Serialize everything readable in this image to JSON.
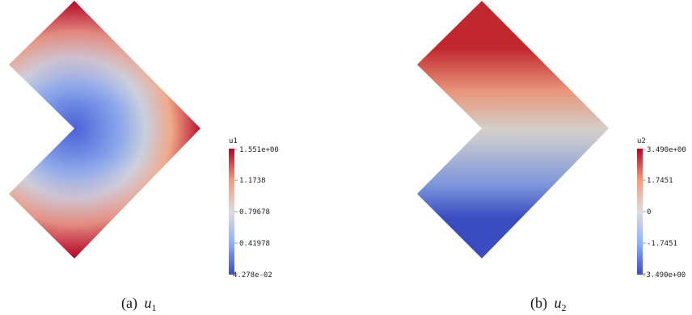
{
  "panels": [
    {
      "field": "u1",
      "colorbar": {
        "title": "u1",
        "labels": [
          "1.551e+00",
          "1.1738",
          "0.79678",
          "0.41978",
          "4.278e-02"
        ]
      },
      "caption": {
        "prefix": "(a)",
        "var": "u",
        "sub": "1"
      }
    },
    {
      "field": "u2",
      "colorbar": {
        "title": "u2",
        "labels": [
          "3.490e+00",
          "1.7451",
          "0",
          "-1.7451",
          "-3.490e+00"
        ]
      },
      "caption": {
        "prefix": "(b)",
        "var": "u",
        "sub": "2"
      }
    }
  ],
  "colormap": {
    "name": "cool-to-warm",
    "stops": [
      "#3b4cc0",
      "#8db0fe",
      "#dddcdc",
      "#f49a7b",
      "#b40426"
    ]
  }
}
